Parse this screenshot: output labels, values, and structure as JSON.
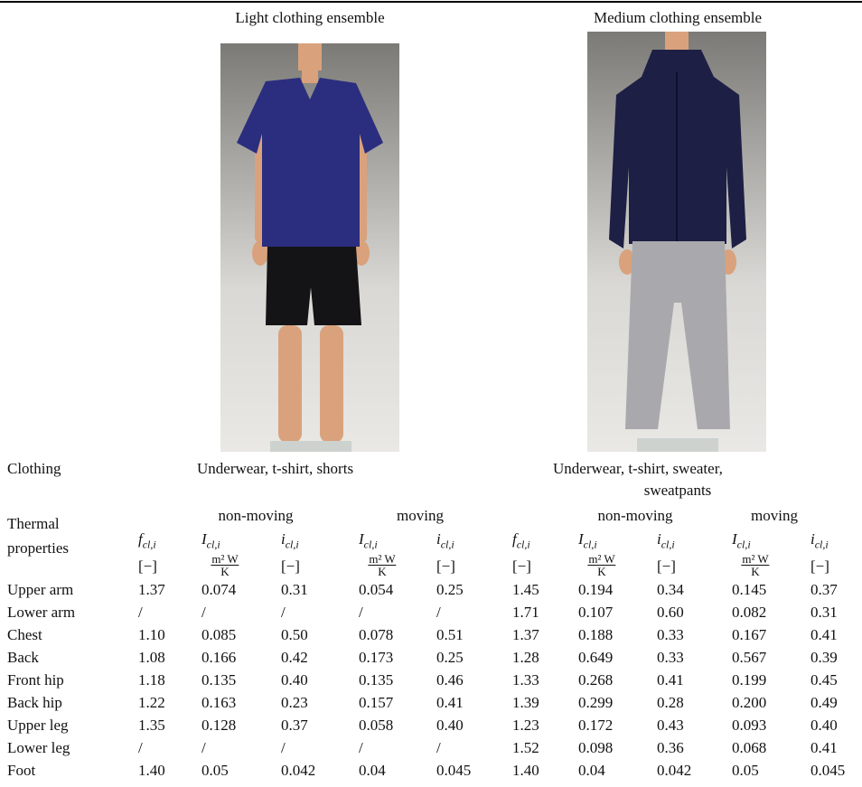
{
  "header": {
    "light": "Light clothing ensemble",
    "medium": "Medium clothing ensemble"
  },
  "clothing": {
    "label": "Clothing",
    "light": "Underwear, t-shirt, shorts",
    "medium_line1": "Underwear, t-shirt, sweater,",
    "medium_line2": "sweatpants"
  },
  "thermal": {
    "label_line1": "Thermal",
    "label_line2": "properties",
    "groups": [
      "non-moving",
      "moving",
      "non-moving",
      "moving"
    ],
    "symbols": [
      {
        "base": "f",
        "sub": "cl,i"
      },
      {
        "base": "I",
        "sub": "cl,i"
      },
      {
        "base": "i",
        "sub": "cl,i"
      },
      {
        "base": "I",
        "sub": "cl,i"
      },
      {
        "base": "i",
        "sub": "cl,i"
      },
      {
        "base": "f",
        "sub": "cl,i"
      },
      {
        "base": "I",
        "sub": "cl,i"
      },
      {
        "base": "i",
        "sub": "cl,i"
      },
      {
        "base": "I",
        "sub": "cl,i"
      },
      {
        "base": "i",
        "sub": "cl,i"
      }
    ],
    "units": [
      {
        "text": "[−]"
      },
      {
        "num": "m² W",
        "den": "K"
      },
      {
        "text": "[−]"
      },
      {
        "num": "m² W",
        "den": "K"
      },
      {
        "text": "[−]"
      },
      {
        "text": "[−]"
      },
      {
        "num": "m² W",
        "den": "K"
      },
      {
        "text": "[−]"
      },
      {
        "num": "m² W",
        "den": "K"
      },
      {
        "text": "[−]"
      }
    ]
  },
  "table": {
    "rows": [
      [
        "Upper arm",
        "1.37",
        "0.074",
        "0.31",
        "0.054",
        "0.25",
        "1.45",
        "0.194",
        "0.34",
        "0.145",
        "0.37"
      ],
      [
        "Lower arm",
        "/",
        "/",
        "/",
        "/",
        "/",
        "1.71",
        "0.107",
        "0.60",
        "0.082",
        "0.31"
      ],
      [
        "Chest",
        "1.10",
        "0.085",
        "0.50",
        "0.078",
        "0.51",
        "1.37",
        "0.188",
        "0.33",
        "0.167",
        "0.41"
      ],
      [
        "Back",
        "1.08",
        "0.166",
        "0.42",
        "0.173",
        "0.25",
        "1.28",
        "0.649",
        "0.33",
        "0.567",
        "0.39"
      ],
      [
        "Front hip",
        "1.18",
        "0.135",
        "0.40",
        "0.135",
        "0.46",
        "1.33",
        "0.268",
        "0.41",
        "0.199",
        "0.45"
      ],
      [
        "Back hip",
        "1.22",
        "0.163",
        "0.23",
        "0.157",
        "0.41",
        "1.39",
        "0.299",
        "0.28",
        "0.200",
        "0.49"
      ],
      [
        "Upper leg",
        "1.35",
        "0.128",
        "0.37",
        "0.058",
        "0.40",
        "1.23",
        "0.172",
        "0.43",
        "0.093",
        "0.40"
      ],
      [
        "Lower leg",
        "/",
        "/",
        "/",
        "/",
        "/",
        "1.52",
        "0.098",
        "0.36",
        "0.068",
        "0.41"
      ],
      [
        "Foot",
        "1.40",
        "0.05",
        "0.042",
        "0.04",
        "0.045",
        "1.40",
        "0.04",
        "0.042",
        "0.05",
        "0.045"
      ]
    ]
  }
}
